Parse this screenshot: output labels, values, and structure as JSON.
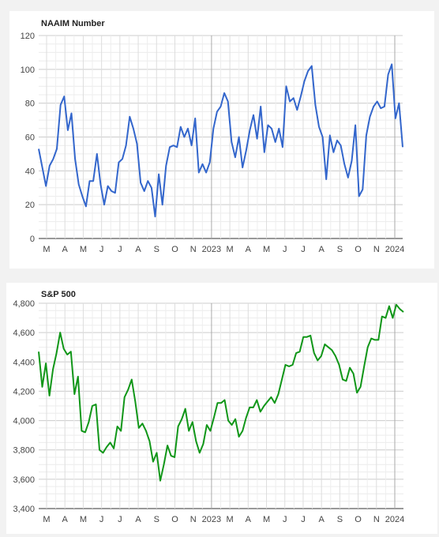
{
  "chart_data": [
    {
      "type": "line",
      "title": "NAAIM Number",
      "xlabel": "",
      "ylabel": "",
      "x_tick_labels": [
        "M",
        "A",
        "M",
        "J",
        "J",
        "A",
        "S",
        "O",
        "N",
        "2023",
        "M",
        "A",
        "M",
        "J",
        "J",
        "A",
        "S",
        "O",
        "N",
        "2024"
      ],
      "y_tick_labels": [
        "0",
        "20",
        "40",
        "60",
        "80",
        "100",
        "120"
      ],
      "ylim": [
        0,
        120
      ],
      "grid": true,
      "color": "#3366cc",
      "values": [
        53,
        42,
        31,
        43,
        47,
        53,
        79,
        84,
        64,
        74,
        47,
        32,
        25,
        19,
        34,
        34,
        50,
        32,
        20,
        31,
        28,
        27,
        45,
        47,
        55,
        72,
        65,
        56,
        33,
        28,
        34,
        30,
        13,
        38,
        20,
        43,
        54,
        55,
        54,
        66,
        60,
        65,
        55,
        71,
        39,
        44,
        39,
        45,
        65,
        75,
        78,
        86,
        81,
        57,
        48,
        60,
        42,
        52,
        64,
        73,
        59,
        78,
        51,
        67,
        65,
        57,
        65,
        54,
        90,
        81,
        83,
        76,
        84,
        93,
        99,
        102,
        79,
        66,
        60,
        35,
        61,
        51,
        58,
        55,
        44,
        36,
        46,
        67,
        25,
        29,
        61,
        72,
        78,
        81,
        77,
        78,
        97,
        103,
        71,
        80,
        54
      ]
    },
    {
      "type": "line",
      "title": "S&P 500",
      "xlabel": "",
      "ylabel": "",
      "x_tick_labels": [
        "M",
        "A",
        "M",
        "J",
        "J",
        "A",
        "S",
        "O",
        "N",
        "2023",
        "M",
        "A",
        "M",
        "J",
        "J",
        "A",
        "S",
        "O",
        "N",
        "2024"
      ],
      "y_tick_labels": [
        "3,400",
        "3,600",
        "3,800",
        "4,000",
        "4,200",
        "4,400",
        "4,600",
        "4,800"
      ],
      "ylim": [
        3400,
        4800
      ],
      "grid": true,
      "color": "#109618",
      "values": [
        4470,
        4230,
        4390,
        4170,
        4350,
        4460,
        4600,
        4490,
        4450,
        4470,
        4180,
        4300,
        3930,
        3920,
        3990,
        4100,
        4110,
        3800,
        3780,
        3820,
        3850,
        3810,
        3960,
        3930,
        4160,
        4210,
        4280,
        4130,
        3950,
        3980,
        3930,
        3860,
        3720,
        3780,
        3590,
        3700,
        3830,
        3760,
        3750,
        3960,
        4010,
        4080,
        3930,
        3990,
        3860,
        3780,
        3840,
        3970,
        3930,
        4020,
        4120,
        4120,
        4140,
        4000,
        3970,
        4010,
        3890,
        3930,
        4020,
        4090,
        4090,
        4140,
        4060,
        4100,
        4130,
        4160,
        4120,
        4180,
        4280,
        4380,
        4370,
        4380,
        4460,
        4470,
        4570,
        4570,
        4580,
        4460,
        4410,
        4440,
        4520,
        4500,
        4480,
        4440,
        4380,
        4280,
        4270,
        4360,
        4320,
        4190,
        4230,
        4370,
        4500,
        4560,
        4550,
        4550,
        4710,
        4700,
        4780,
        4700,
        4790,
        4760,
        4740
      ]
    }
  ]
}
